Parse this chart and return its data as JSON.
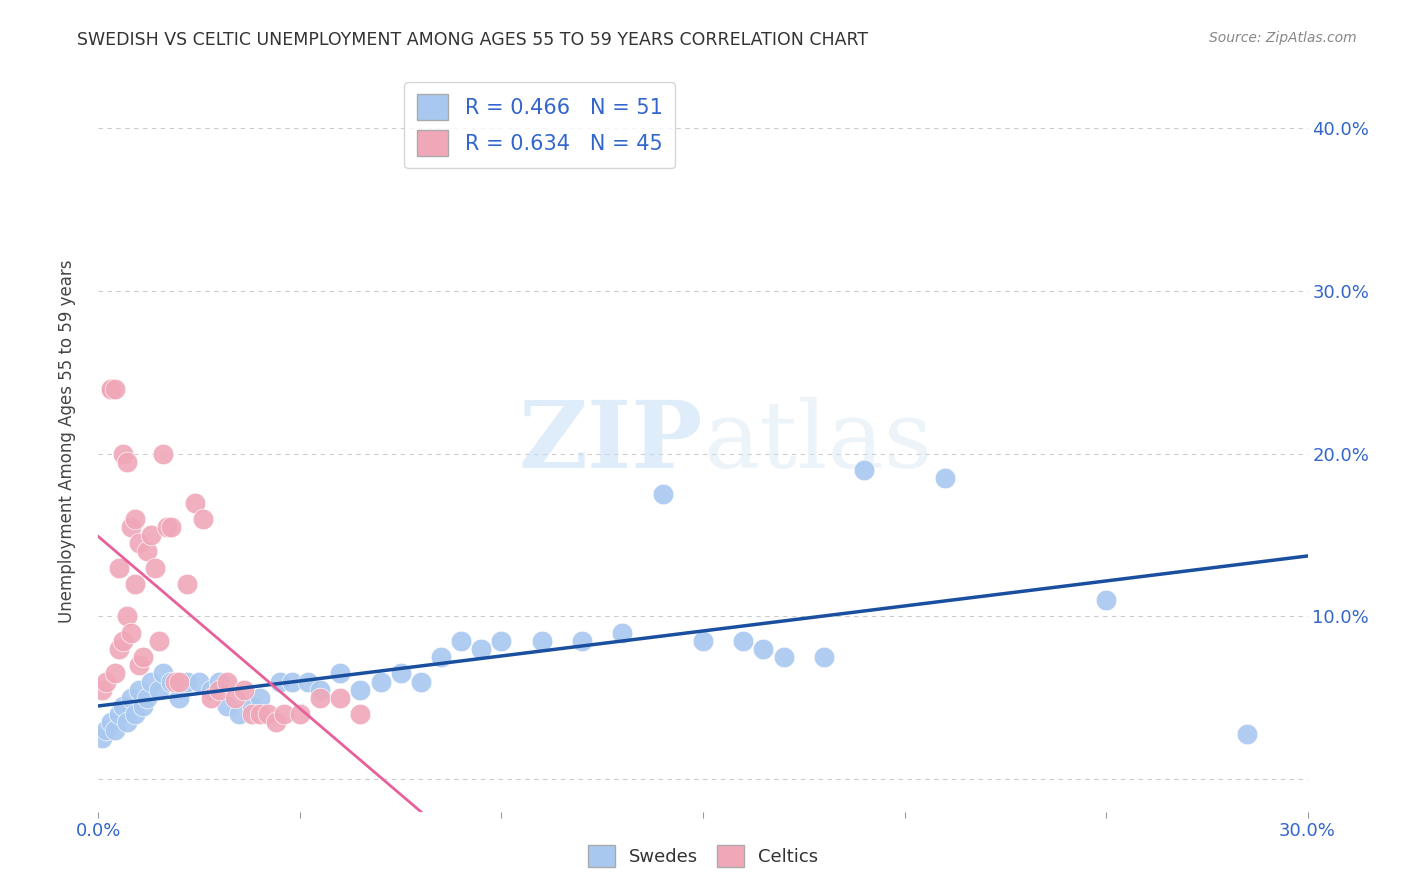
{
  "title": "SWEDISH VS CELTIC UNEMPLOYMENT AMONG AGES 55 TO 59 YEARS CORRELATION CHART",
  "source": "Source: ZipAtlas.com",
  "ylabel": "Unemployment Among Ages 55 to 59 years",
  "xlim": [
    0.0,
    0.3
  ],
  "ylim": [
    -0.02,
    0.435
  ],
  "xticks": [
    0.0,
    0.05,
    0.1,
    0.15,
    0.2,
    0.25,
    0.3
  ],
  "yticks": [
    0.0,
    0.1,
    0.2,
    0.3,
    0.4
  ],
  "swedes_R": 0.466,
  "swedes_N": 51,
  "celtics_R": 0.634,
  "celtics_N": 45,
  "swedes_color": "#a8c8f0",
  "celtics_color": "#f0a8b8",
  "swedes_line_color": "#1a4fa0",
  "celtics_line_color": "#e8609a",
  "grid_color": "#cccccc",
  "background_color": "#ffffff",
  "watermark_zip": "ZIP",
  "watermark_atlas": "atlas",
  "swedes_x": [
    0.001,
    0.002,
    0.003,
    0.004,
    0.005,
    0.006,
    0.007,
    0.008,
    0.009,
    0.01,
    0.011,
    0.012,
    0.013,
    0.015,
    0.016,
    0.018,
    0.02,
    0.022,
    0.025,
    0.028,
    0.03,
    0.032,
    0.035,
    0.038,
    0.04,
    0.045,
    0.048,
    0.052,
    0.055,
    0.06,
    0.065,
    0.07,
    0.075,
    0.08,
    0.085,
    0.09,
    0.095,
    0.1,
    0.11,
    0.12,
    0.13,
    0.14,
    0.15,
    0.16,
    0.165,
    0.17,
    0.18,
    0.19,
    0.21,
    0.25,
    0.285
  ],
  "swedes_y": [
    0.025,
    0.03,
    0.035,
    0.03,
    0.04,
    0.045,
    0.035,
    0.05,
    0.04,
    0.055,
    0.045,
    0.05,
    0.06,
    0.055,
    0.065,
    0.06,
    0.05,
    0.06,
    0.06,
    0.055,
    0.06,
    0.045,
    0.04,
    0.045,
    0.05,
    0.06,
    0.06,
    0.06,
    0.055,
    0.065,
    0.055,
    0.06,
    0.065,
    0.06,
    0.075,
    0.085,
    0.08,
    0.085,
    0.085,
    0.085,
    0.09,
    0.175,
    0.085,
    0.085,
    0.08,
    0.075,
    0.075,
    0.19,
    0.185,
    0.11,
    0.028
  ],
  "celtics_x": [
    0.001,
    0.002,
    0.003,
    0.003,
    0.004,
    0.004,
    0.005,
    0.005,
    0.006,
    0.006,
    0.007,
    0.007,
    0.008,
    0.008,
    0.009,
    0.009,
    0.01,
    0.01,
    0.011,
    0.012,
    0.013,
    0.014,
    0.015,
    0.016,
    0.017,
    0.018,
    0.019,
    0.02,
    0.022,
    0.024,
    0.026,
    0.028,
    0.03,
    0.032,
    0.034,
    0.036,
    0.038,
    0.04,
    0.042,
    0.044,
    0.046,
    0.05,
    0.055,
    0.06,
    0.065
  ],
  "celtics_y": [
    0.055,
    0.06,
    0.24,
    0.24,
    0.065,
    0.24,
    0.08,
    0.13,
    0.085,
    0.2,
    0.1,
    0.195,
    0.09,
    0.155,
    0.12,
    0.16,
    0.07,
    0.145,
    0.075,
    0.14,
    0.15,
    0.13,
    0.085,
    0.2,
    0.155,
    0.155,
    0.06,
    0.06,
    0.12,
    0.17,
    0.16,
    0.05,
    0.055,
    0.06,
    0.05,
    0.055,
    0.04,
    0.04,
    0.04,
    0.035,
    0.04,
    0.04,
    0.05,
    0.05,
    0.04
  ],
  "celtics_line_x0": 0.0,
  "celtics_line_x1": 0.1,
  "swedes_line_x0": 0.0,
  "swedes_line_x1": 0.3
}
